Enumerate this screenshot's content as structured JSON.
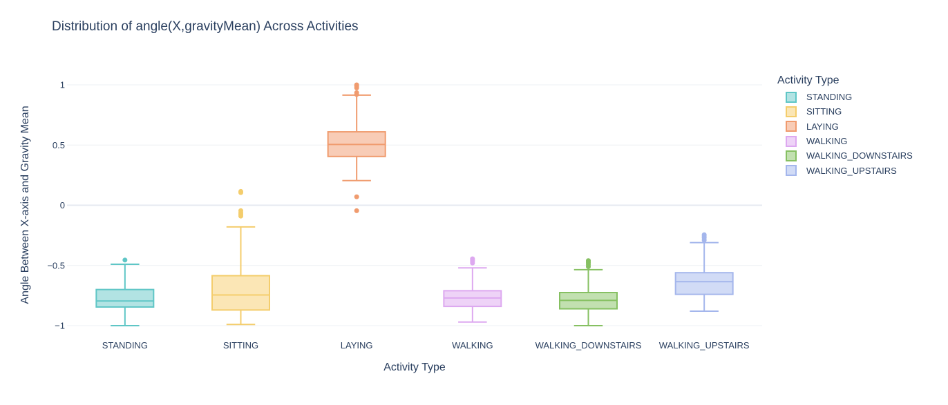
{
  "chart_data": {
    "type": "box",
    "title": "Distribution of angle(X,gravityMean) Across Activities",
    "xlabel": "Activity Type",
    "ylabel": "Angle Between X-axis and Gravity Mean",
    "ylim": [
      -1.02,
      1.05
    ],
    "yticks": [
      {
        "value": 1,
        "label": "1"
      },
      {
        "value": 0.5,
        "label": "0.5"
      },
      {
        "value": 0,
        "label": "0"
      },
      {
        "value": -0.5,
        "label": "−0.5"
      },
      {
        "value": -1,
        "label": "−1"
      }
    ],
    "grid": true,
    "legend": {
      "title": "Activity Type",
      "placement": "right"
    },
    "categories": [
      "STANDING",
      "SITTING",
      "LAYING",
      "WALKING",
      "WALKING_DOWNSTAIRS",
      "WALKING_UPSTAIRS"
    ],
    "series": [
      {
        "name": "STANDING",
        "color": "#5fc6c6",
        "fill": "#b2e3e3",
        "min": -1.0,
        "q1": -0.845,
        "median": -0.795,
        "q3": -0.7,
        "max": -0.49,
        "outliers": [
          -0.455
        ]
      },
      {
        "name": "SITTING",
        "color": "#f4cd6c",
        "fill": "#fbe6b5",
        "min": -0.99,
        "q1": -0.87,
        "median": -0.745,
        "q3": -0.585,
        "max": -0.18,
        "outliers": [
          -0.09,
          -0.075,
          -0.06,
          -0.045,
          0.105,
          0.115
        ]
      },
      {
        "name": "LAYING",
        "color": "#f09b6e",
        "fill": "#f8ccb6",
        "min": 0.205,
        "q1": 0.405,
        "median": 0.505,
        "q3": 0.61,
        "max": 0.915,
        "outliers": [
          -0.045,
          0.07,
          0.92,
          0.935,
          0.975,
          0.99,
          1.0
        ]
      },
      {
        "name": "WALKING",
        "color": "#dda8f0",
        "fill": "#eed3f7",
        "min": -0.97,
        "q1": -0.84,
        "median": -0.77,
        "q3": -0.71,
        "max": -0.52,
        "outliers": [
          -0.48,
          -0.465,
          -0.455,
          -0.445
        ]
      },
      {
        "name": "WALKING_DOWNSTAIRS",
        "color": "#86c062",
        "fill": "#c2e0b0",
        "min": -1.0,
        "q1": -0.86,
        "median": -0.79,
        "q3": -0.725,
        "max": -0.535,
        "outliers": [
          -0.51,
          -0.495,
          -0.48,
          -0.47,
          -0.46
        ]
      },
      {
        "name": "WALKING_UPSTAIRS",
        "color": "#a4b6ec",
        "fill": "#d1dbf6",
        "min": -0.88,
        "q1": -0.74,
        "median": -0.635,
        "q3": -0.56,
        "max": -0.31,
        "outliers": [
          -0.29,
          -0.27,
          -0.255,
          -0.245
        ]
      }
    ]
  }
}
